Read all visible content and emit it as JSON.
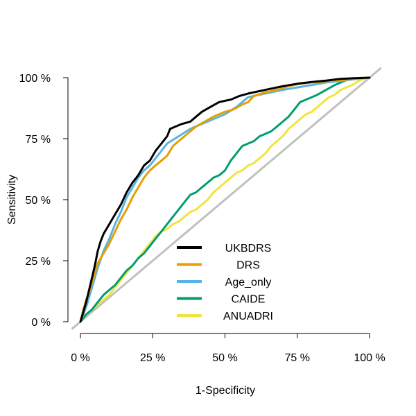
{
  "chart_data": {
    "type": "line",
    "title": "",
    "xlabel": "1-Specificity",
    "ylabel": "Sensitivity",
    "xlim": [
      0,
      100
    ],
    "ylim": [
      0,
      100
    ],
    "x_ticks": [
      "0 %",
      "25 %",
      "50 %",
      "75 %",
      "100 %"
    ],
    "y_ticks": [
      "0 %",
      "25 %",
      "50 %",
      "75 %",
      "100 %"
    ],
    "grid": false,
    "legend_position": "bottom-center",
    "reference_line": {
      "color": "#c0c0c0",
      "x": [
        -3,
        104
      ],
      "y": [
        -3,
        104
      ]
    },
    "series": [
      {
        "name": "UKBDRS",
        "color": "#000000",
        "points": [
          [
            0,
            0
          ],
          [
            1,
            4
          ],
          [
            2,
            8
          ],
          [
            3,
            13
          ],
          [
            4,
            18
          ],
          [
            5,
            23
          ],
          [
            6,
            29
          ],
          [
            7,
            33
          ],
          [
            8,
            36
          ],
          [
            10,
            40
          ],
          [
            12,
            44
          ],
          [
            14,
            48
          ],
          [
            16,
            53
          ],
          [
            18,
            57
          ],
          [
            20,
            60
          ],
          [
            22,
            64
          ],
          [
            24,
            66
          ],
          [
            26,
            70
          ],
          [
            28,
            73
          ],
          [
            30,
            76
          ],
          [
            31,
            79
          ],
          [
            33,
            80
          ],
          [
            35,
            81
          ],
          [
            38,
            82
          ],
          [
            40,
            84
          ],
          [
            42,
            86
          ],
          [
            45,
            88
          ],
          [
            48,
            90
          ],
          [
            50,
            90.5
          ],
          [
            52,
            91
          ],
          [
            55,
            92.5
          ],
          [
            58,
            93.5
          ],
          [
            62,
            94.5
          ],
          [
            66,
            95.5
          ],
          [
            70,
            96.5
          ],
          [
            75,
            97.5
          ],
          [
            80,
            98.2
          ],
          [
            85,
            98.8
          ],
          [
            90,
            99.5
          ],
          [
            95,
            99.8
          ],
          [
            100,
            100
          ]
        ]
      },
      {
        "name": "DRS",
        "color": "#e69f00",
        "points": [
          [
            0,
            0
          ],
          [
            1,
            5
          ],
          [
            2,
            9
          ],
          [
            3,
            12
          ],
          [
            4,
            16
          ],
          [
            5,
            20
          ],
          [
            6,
            24
          ],
          [
            8,
            28
          ],
          [
            10,
            32
          ],
          [
            12,
            37
          ],
          [
            14,
            42
          ],
          [
            16,
            46
          ],
          [
            18,
            51
          ],
          [
            20,
            55
          ],
          [
            22,
            59
          ],
          [
            24,
            62
          ],
          [
            26,
            64
          ],
          [
            28,
            66
          ],
          [
            30,
            68
          ],
          [
            32,
            72
          ],
          [
            35,
            75
          ],
          [
            38,
            78
          ],
          [
            40,
            80
          ],
          [
            43,
            82
          ],
          [
            46,
            84
          ],
          [
            50,
            86
          ],
          [
            53,
            87
          ],
          [
            56,
            89
          ],
          [
            58,
            90
          ],
          [
            60,
            92.5
          ],
          [
            64,
            94
          ],
          [
            68,
            95
          ],
          [
            72,
            96.5
          ],
          [
            76,
            97.5
          ],
          [
            80,
            98
          ],
          [
            85,
            98.5
          ],
          [
            90,
            99
          ],
          [
            95,
            99.5
          ],
          [
            100,
            100
          ]
        ]
      },
      {
        "name": "Age_only",
        "color": "#56b4e9",
        "points": [
          [
            0,
            0
          ],
          [
            2,
            6
          ],
          [
            4,
            14
          ],
          [
            6,
            22
          ],
          [
            8,
            29
          ],
          [
            10,
            34
          ],
          [
            12,
            40
          ],
          [
            14,
            45
          ],
          [
            16,
            51
          ],
          [
            18,
            55
          ],
          [
            20,
            59
          ],
          [
            22,
            62
          ],
          [
            24,
            64
          ],
          [
            26,
            67
          ],
          [
            28,
            70
          ],
          [
            30,
            73
          ],
          [
            34,
            76
          ],
          [
            38,
            79
          ],
          [
            42,
            81
          ],
          [
            46,
            83
          ],
          [
            50,
            85
          ],
          [
            54,
            88
          ],
          [
            56,
            90
          ],
          [
            58,
            92
          ],
          [
            62,
            93
          ],
          [
            66,
            94
          ],
          [
            70,
            95
          ],
          [
            75,
            96
          ],
          [
            80,
            97
          ],
          [
            85,
            98
          ],
          [
            90,
            98.7
          ],
          [
            95,
            99.4
          ],
          [
            100,
            100
          ]
        ]
      },
      {
        "name": "CAIDE",
        "color": "#009e73",
        "points": [
          [
            0,
            0
          ],
          [
            2,
            3
          ],
          [
            4,
            5
          ],
          [
            6,
            8
          ],
          [
            8,
            11
          ],
          [
            10,
            13
          ],
          [
            12,
            15
          ],
          [
            14,
            18
          ],
          [
            16,
            21
          ],
          [
            18,
            23
          ],
          [
            20,
            26
          ],
          [
            22,
            28
          ],
          [
            24,
            31
          ],
          [
            26,
            34
          ],
          [
            28,
            37
          ],
          [
            30,
            40
          ],
          [
            32,
            43
          ],
          [
            34,
            46
          ],
          [
            36,
            49
          ],
          [
            38,
            52
          ],
          [
            40,
            53
          ],
          [
            42,
            55
          ],
          [
            44,
            57
          ],
          [
            46,
            59
          ],
          [
            48,
            60
          ],
          [
            50,
            62
          ],
          [
            52,
            66
          ],
          [
            54,
            69
          ],
          [
            56,
            72
          ],
          [
            58,
            73
          ],
          [
            60,
            74
          ],
          [
            62,
            76
          ],
          [
            64,
            77
          ],
          [
            66,
            78
          ],
          [
            68,
            80
          ],
          [
            70,
            82
          ],
          [
            72,
            84
          ],
          [
            74,
            87
          ],
          [
            76,
            90
          ],
          [
            78,
            91
          ],
          [
            80,
            92
          ],
          [
            82,
            93
          ],
          [
            85,
            95
          ],
          [
            88,
            97
          ],
          [
            90,
            98
          ],
          [
            92,
            99
          ],
          [
            95,
            99.5
          ],
          [
            100,
            100
          ]
        ]
      },
      {
        "name": "ANUADRI",
        "color": "#f0e442",
        "points": [
          [
            0,
            0
          ],
          [
            2,
            3
          ],
          [
            4,
            5
          ],
          [
            6,
            7
          ],
          [
            8,
            9
          ],
          [
            10,
            11
          ],
          [
            12,
            14
          ],
          [
            14,
            17
          ],
          [
            16,
            20
          ],
          [
            18,
            23
          ],
          [
            20,
            26
          ],
          [
            22,
            29
          ],
          [
            24,
            32
          ],
          [
            26,
            35
          ],
          [
            28,
            37
          ],
          [
            30,
            38
          ],
          [
            32,
            40
          ],
          [
            34,
            41
          ],
          [
            36,
            43
          ],
          [
            38,
            45
          ],
          [
            40,
            46
          ],
          [
            42,
            48
          ],
          [
            44,
            50
          ],
          [
            46,
            53
          ],
          [
            48,
            55
          ],
          [
            50,
            57
          ],
          [
            52,
            59
          ],
          [
            54,
            61
          ],
          [
            56,
            62
          ],
          [
            58,
            64
          ],
          [
            60,
            65
          ],
          [
            62,
            67
          ],
          [
            64,
            69
          ],
          [
            66,
            72
          ],
          [
            68,
            74
          ],
          [
            70,
            76
          ],
          [
            72,
            79
          ],
          [
            74,
            81
          ],
          [
            76,
            83
          ],
          [
            78,
            85
          ],
          [
            80,
            86
          ],
          [
            82,
            88
          ],
          [
            84,
            90
          ],
          [
            86,
            92
          ],
          [
            88,
            93
          ],
          [
            90,
            95
          ],
          [
            92,
            96
          ],
          [
            94,
            97
          ],
          [
            96,
            98.5
          ],
          [
            98,
            99.5
          ],
          [
            100,
            100
          ]
        ]
      }
    ]
  }
}
